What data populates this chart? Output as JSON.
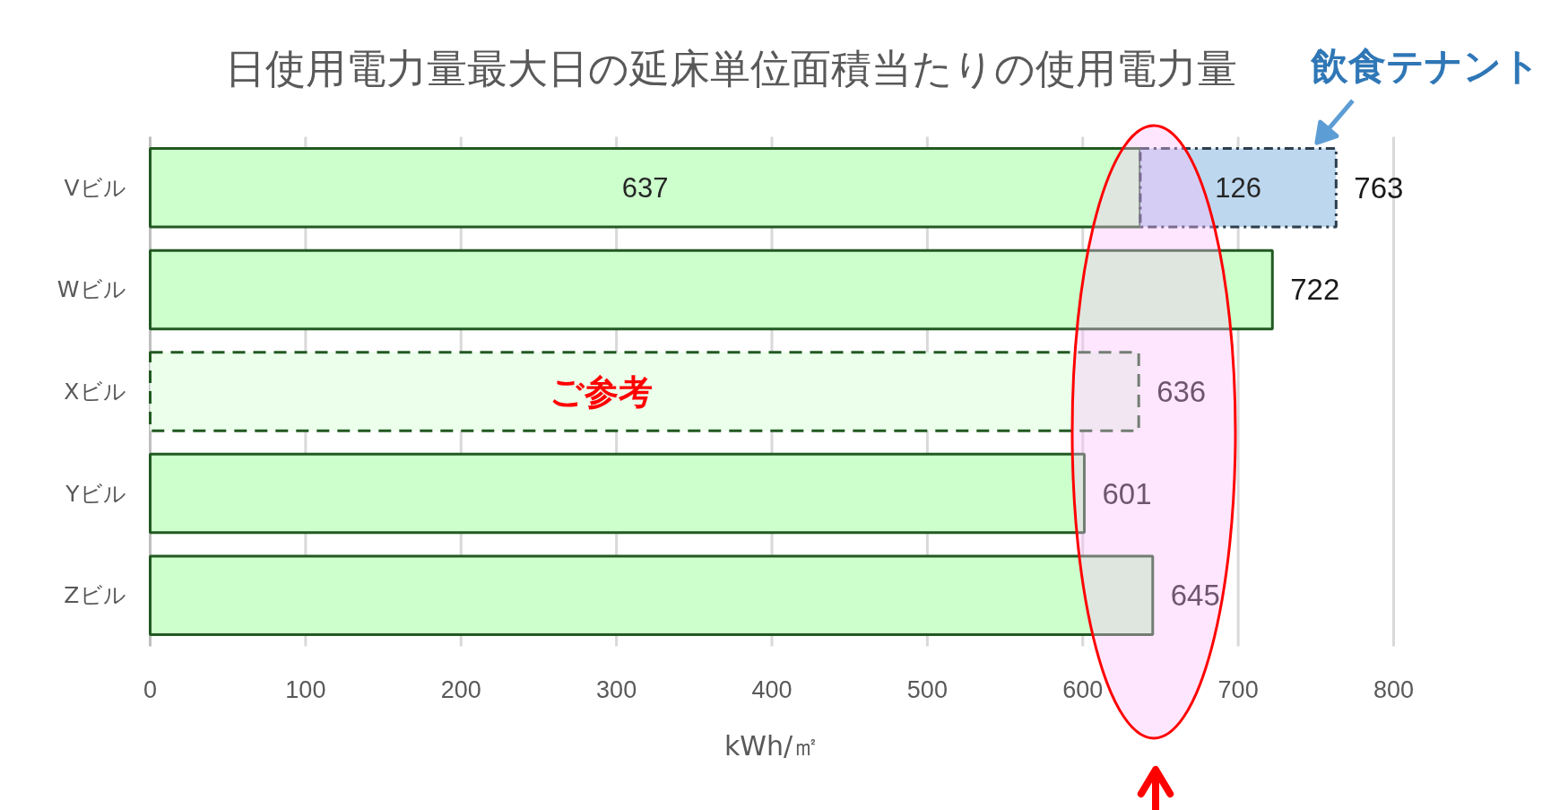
{
  "chart_data": {
    "type": "bar",
    "orientation": "horizontal",
    "stacked": true,
    "title": "日使用電力量最大日の延床単位面積当たりの使用電力量",
    "xlabel": "kWh/㎡",
    "categories": [
      "Vビル",
      "Wビル",
      "Xビル",
      "Yビル",
      "Zビル"
    ],
    "series": [
      {
        "color": "#ccffcc",
        "values": [
          637,
          722,
          null,
          601,
          645
        ],
        "line_style": "solid"
      },
      {
        "name": "飲食テナント",
        "color": "#bdd7ee",
        "values": [
          126,
          null,
          null,
          null,
          null
        ],
        "line_style": "dashdot"
      },
      {
        "color": "#ebffeb",
        "values": [
          null,
          null,
          636,
          null,
          null
        ],
        "line_style": "dashed"
      }
    ],
    "totals": [
      "763",
      null,
      null,
      null,
      null
    ],
    "data_labels": true,
    "xlim": [
      0,
      800
    ],
    "xticks": [
      0,
      100,
      200,
      300,
      400,
      500,
      600,
      700,
      800
    ],
    "grid": "x",
    "annotations": [
      {
        "text": "ご参考",
        "x": 290,
        "y": "Xビル"
      }
    ]
  }
}
